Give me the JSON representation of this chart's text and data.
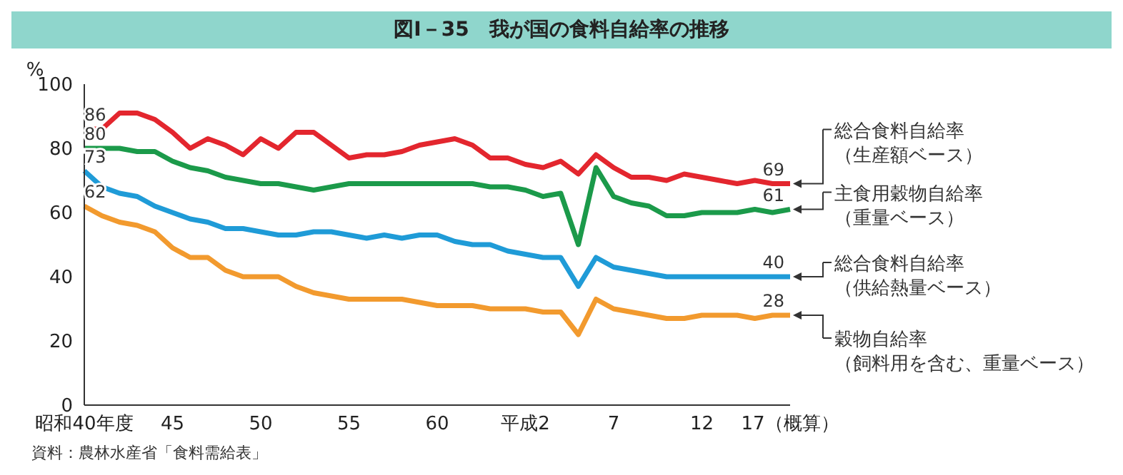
{
  "chart_data": {
    "type": "line",
    "title": "図Ⅰ－35　我が国の食料自給率の推移",
    "ylabel": "%",
    "annotations": [
      "資料：農林水産省「食料需給表」"
    ],
    "categories": [
      "昭和40年度",
      null,
      null,
      null,
      null,
      "45",
      null,
      null,
      null,
      null,
      "50",
      null,
      null,
      null,
      null,
      "55",
      null,
      null,
      null,
      null,
      "60",
      null,
      null,
      null,
      null,
      "平成2",
      null,
      null,
      null,
      null,
      "7",
      null,
      null,
      null,
      null,
      "12",
      null,
      null,
      null,
      null,
      "17（概算）"
    ],
    "ylim": [
      0,
      100
    ],
    "yticks": [
      0,
      20,
      40,
      60,
      80,
      100
    ],
    "grid": false,
    "legend": false,
    "marker": "none",
    "line_style": "solid",
    "series": [
      {
        "name": "総合食料自給率（生産額ベース）",
        "color": "#e3262e",
        "values": [
          86,
          86,
          91,
          91,
          89,
          85,
          80,
          83,
          81,
          78,
          83,
          80,
          85,
          85,
          81,
          77,
          78,
          78,
          79,
          81,
          82,
          83,
          81,
          77,
          77,
          75,
          74,
          76,
          72,
          78,
          74,
          71,
          71,
          70,
          72,
          71,
          70,
          69,
          70,
          69,
          69
        ],
        "value_labels": [
          "86",
          null,
          null,
          null,
          null,
          null,
          null,
          null,
          null,
          null,
          null,
          null,
          null,
          null,
          null,
          null,
          null,
          null,
          null,
          null,
          null,
          null,
          null,
          null,
          null,
          null,
          null,
          null,
          null,
          null,
          null,
          null,
          null,
          null,
          null,
          null,
          null,
          null,
          null,
          null,
          "69"
        ]
      },
      {
        "name": "主食用穀物自給率（重量ベース）",
        "color": "#1b9a4a",
        "values": [
          80,
          80,
          80,
          79,
          79,
          76,
          74,
          73,
          71,
          70,
          69,
          69,
          68,
          67,
          68,
          69,
          69,
          69,
          69,
          69,
          69,
          69,
          69,
          68,
          68,
          67,
          65,
          66,
          50,
          74,
          65,
          63,
          62,
          59,
          59,
          60,
          60,
          60,
          61,
          60,
          61
        ],
        "value_labels": [
          "80",
          null,
          null,
          null,
          null,
          null,
          null,
          null,
          null,
          null,
          null,
          null,
          null,
          null,
          null,
          null,
          null,
          null,
          null,
          null,
          null,
          null,
          null,
          null,
          null,
          null,
          null,
          null,
          null,
          null,
          null,
          null,
          null,
          null,
          null,
          null,
          null,
          null,
          null,
          null,
          "61"
        ]
      },
      {
        "name": "総合食料自給率（供給熱量ベース）",
        "color": "#1f9bd7",
        "values": [
          73,
          68,
          66,
          65,
          62,
          60,
          58,
          57,
          55,
          55,
          54,
          53,
          53,
          54,
          54,
          53,
          52,
          53,
          52,
          53,
          53,
          51,
          50,
          50,
          48,
          47,
          46,
          46,
          37,
          46,
          43,
          42,
          41,
          40,
          40,
          40,
          40,
          40,
          40,
          40,
          40
        ],
        "value_labels": [
          "73",
          null,
          null,
          null,
          null,
          null,
          null,
          null,
          null,
          null,
          null,
          null,
          null,
          null,
          null,
          null,
          null,
          null,
          null,
          null,
          null,
          null,
          null,
          null,
          null,
          null,
          null,
          null,
          null,
          null,
          null,
          null,
          null,
          null,
          null,
          null,
          null,
          null,
          null,
          null,
          "40"
        ]
      },
      {
        "name": "穀物自給率（飼料用を含む、重量ベース）",
        "color": "#f29a2e",
        "values": [
          62,
          59,
          57,
          56,
          54,
          49,
          46,
          46,
          42,
          40,
          40,
          40,
          37,
          35,
          34,
          33,
          33,
          33,
          33,
          32,
          31,
          31,
          31,
          30,
          30,
          30,
          29,
          29,
          22,
          33,
          30,
          29,
          28,
          27,
          27,
          28,
          28,
          28,
          27,
          28,
          28
        ],
        "value_labels": [
          "62",
          null,
          null,
          null,
          null,
          null,
          null,
          null,
          null,
          null,
          null,
          null,
          null,
          null,
          null,
          null,
          null,
          null,
          null,
          null,
          null,
          null,
          null,
          null,
          null,
          null,
          null,
          null,
          null,
          null,
          null,
          null,
          null,
          null,
          null,
          null,
          null,
          null,
          null,
          null,
          "28"
        ]
      }
    ]
  }
}
